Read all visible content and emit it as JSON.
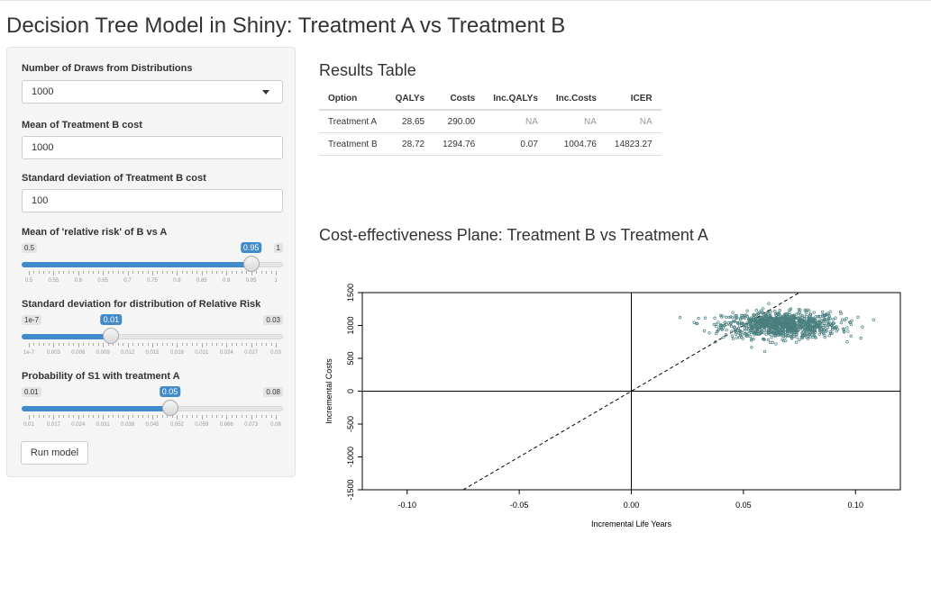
{
  "page": {
    "title": "Decision Tree Model in Shiny: Treatment A vs Treatment B"
  },
  "sidebar": {
    "draws_label": "Number of Draws from Distributions",
    "draws_selected": "1000",
    "mean_cost_label": "Mean of Treatment B cost",
    "mean_cost_value": "1000",
    "sd_cost_label": "Standard deviation of Treatment B cost",
    "sd_cost_value": "100",
    "rr_mean": {
      "label": "Mean of 'relative risk' of B vs A",
      "min": "0.5",
      "max": "1",
      "value": "0.95",
      "value_num": 0.95,
      "min_num": 0.5,
      "max_num": 1,
      "grid": [
        "0.5",
        "0.55",
        "0.6",
        "0.65",
        "0.7",
        "0.75",
        "0.8",
        "0.85",
        "0.9",
        "0.95",
        "1"
      ]
    },
    "rr_sd": {
      "label": "Standard deviation for distribution of Relative Risk",
      "min": "1e-7",
      "max": "0.03",
      "value": "0.01",
      "value_num": 0.01,
      "min_num": 0,
      "max_num": 0.03,
      "grid": [
        "1e-7",
        "0.003",
        "0.006",
        "0.009",
        "0.012",
        "0.015",
        "0.018",
        "0.021",
        "0.024",
        "0.027",
        "0.03"
      ]
    },
    "prob_s1": {
      "label": "Probability of S1 with treatment A",
      "min": "0.01",
      "max": "0.08",
      "value": "0.05",
      "value_num": 0.05,
      "min_num": 0.01,
      "max_num": 0.08,
      "grid": [
        "0.01",
        "0.017",
        "0.024",
        "0.031",
        "0.038",
        "0.045",
        "0.052",
        "0.059",
        "0.066",
        "0.073",
        "0.08"
      ]
    },
    "run_button_label": "Run model"
  },
  "results": {
    "title": "Results Table",
    "columns": [
      "Option",
      "QALYs",
      "Costs",
      "Inc.QALYs",
      "Inc.Costs",
      "ICER"
    ],
    "rows": [
      [
        "Treatment A",
        "28.65",
        "290.00",
        "NA",
        "NA",
        "NA"
      ],
      [
        "Treatment B",
        "28.72",
        "1294.76",
        "0.07",
        "1004.76",
        "14823.27"
      ]
    ]
  },
  "plot_title": "Cost-effectiveness Plane: Treatment B vs Treatment A",
  "chart_data": {
    "type": "scatter",
    "xlabel": "Incremental Life Years",
    "ylabel": "Incremental Costs",
    "xlim": [
      -0.12,
      0.12
    ],
    "ylim": [
      -1500,
      1500
    ],
    "xticks": [
      "-0.10",
      "-0.05",
      "0.00",
      "0.05",
      "0.10"
    ],
    "xtick_values": [
      -0.1,
      -0.05,
      0,
      0.05,
      0.1
    ],
    "yticks": [
      "-1500",
      "-1000",
      "-500",
      "0",
      "500",
      "1000",
      "1500"
    ],
    "ytick_values": [
      -1500,
      -1000,
      -500,
      0,
      500,
      1000,
      1500
    ],
    "reference_lines": [
      {
        "kind": "vertical",
        "x": 0
      },
      {
        "kind": "horizontal",
        "y": 0
      },
      {
        "kind": "dashed-threshold",
        "slope": 20000
      }
    ],
    "point_color": "#4a7f7f",
    "points": {
      "count": 1000,
      "x_mean": 0.067,
      "x_sd": 0.013,
      "y_mean": 1005,
      "y_sd": 100
    }
  }
}
